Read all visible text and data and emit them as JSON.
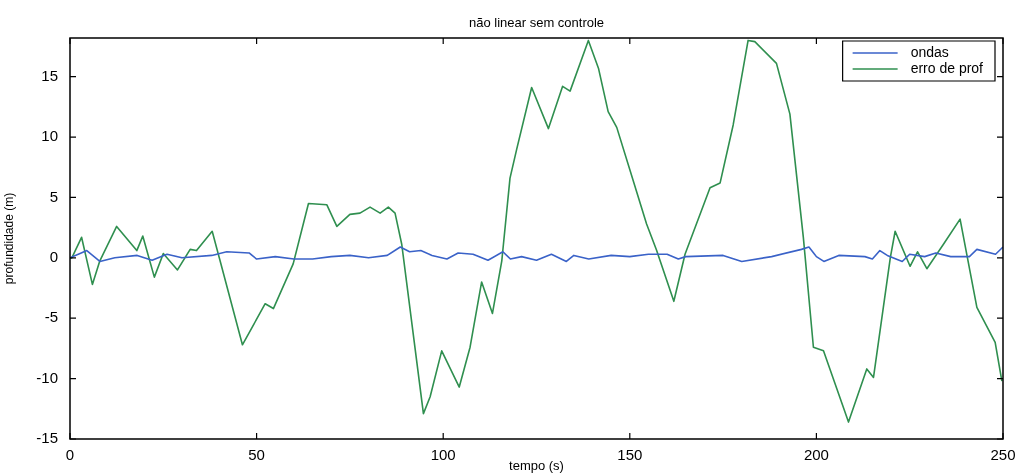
{
  "chart_data": {
    "type": "line",
    "title": "não linear sem controle",
    "xlabel": "tempo (s)",
    "ylabel": "profundidade (m)",
    "xlim": [
      0,
      250
    ],
    "xticks": [
      0,
      50,
      100,
      150,
      200,
      250
    ],
    "ylim": [
      -15,
      18.2
    ],
    "yticks": [
      -15,
      -10,
      -5,
      0,
      5,
      10,
      15
    ],
    "grid": false,
    "legend": "top right",
    "marker": "none",
    "line_style": "solid",
    "series": [
      {
        "name": "ondas",
        "color": "#3a62c8",
        "x": [
          0,
          3,
          4.5,
          8,
          12,
          18,
          22,
          26,
          30,
          38,
          42,
          48,
          50,
          55,
          60,
          65,
          70,
          75,
          80,
          85,
          88.5,
          91,
          94,
          97,
          101,
          104,
          108,
          112,
          116,
          118,
          121,
          125,
          129,
          133,
          135,
          139,
          145,
          150,
          155,
          160,
          163,
          165,
          175,
          180,
          188,
          196,
          198,
          200,
          202,
          206,
          213,
          215,
          217,
          219,
          223,
          225,
          229,
          232,
          236,
          241,
          243,
          248,
          250
        ],
        "values": [
          0,
          0.4,
          0.6,
          -0.3,
          0,
          0.2,
          -0.2,
          0.3,
          0,
          0.2,
          0.5,
          0.4,
          -0.1,
          0.1,
          -0.1,
          -0.1,
          0.1,
          0.2,
          0,
          0.2,
          0.9,
          0.5,
          0.6,
          0.2,
          -0.1,
          0.4,
          0.3,
          -0.2,
          0.5,
          -0.1,
          0.1,
          -0.2,
          0.3,
          -0.3,
          0.2,
          -0.1,
          0.2,
          0.1,
          0.3,
          0.3,
          -0.1,
          0.1,
          0.2,
          -0.3,
          0.1,
          0.7,
          0.9,
          0.1,
          -0.3,
          0.2,
          0.1,
          -0.1,
          0.6,
          0.2,
          -0.3,
          0.3,
          0.1,
          0.4,
          0.1,
          0.1,
          0.7,
          0.3,
          0.9
        ]
      },
      {
        "name": "erro de prof",
        "color": "#2f8f4f",
        "x": [
          0,
          0.5,
          3.1,
          6,
          8,
          12.5,
          17.9,
          19.5,
          22.6,
          25,
          28.8,
          32.2,
          33.9,
          38.1,
          40,
          46.2,
          52.3,
          54.5,
          59.8,
          63.9,
          68.8,
          71.5,
          75,
          77.7,
          80.4,
          83.1,
          85.3,
          87.1,
          88.9,
          94.7,
          96.5,
          99.6,
          104.3,
          107.2,
          110.3,
          113.2,
          115.7,
          117.9,
          119.7,
          123.7,
          128.2,
          132,
          134,
          138.9,
          141.6,
          144.2,
          146.5,
          150.9,
          154.5,
          157.2,
          161.8,
          164.8,
          171.5,
          174.2,
          177.7,
          181.7,
          183.5,
          189.3,
          192.9,
          196.5,
          199.2,
          201.9,
          208.6,
          213.5,
          215.3,
          219.8,
          221.1,
          225.1,
          227.1,
          229.6,
          234,
          238.5,
          243,
          247.9,
          249.7
        ],
        "values": [
          0,
          0,
          1.7,
          -2.2,
          -0.25,
          2.6,
          0.6,
          1.8,
          -1.6,
          0.35,
          -1,
          0.7,
          0.6,
          2.2,
          0,
          -7.2,
          -3.8,
          -4.2,
          -0.5,
          4.5,
          4.4,
          2.6,
          3.6,
          3.7,
          4.2,
          3.7,
          4.2,
          3.7,
          1.1,
          -12.9,
          -11.5,
          -7.7,
          -10.7,
          -7.4,
          -2,
          -4.6,
          -0.25,
          6.6,
          9,
          14.1,
          10.7,
          14.2,
          13.8,
          18,
          15.7,
          12.1,
          10.8,
          6.4,
          2.8,
          0.6,
          -3.6,
          0.3,
          5.8,
          6.2,
          11,
          18,
          17.9,
          16.1,
          11.9,
          1.7,
          -7.4,
          -7.7,
          -13.6,
          -9.2,
          -9.9,
          0,
          2.2,
          -0.7,
          0.5,
          -0.9,
          1.1,
          3.2,
          -4.1,
          -7,
          -10.2
        ]
      }
    ]
  }
}
